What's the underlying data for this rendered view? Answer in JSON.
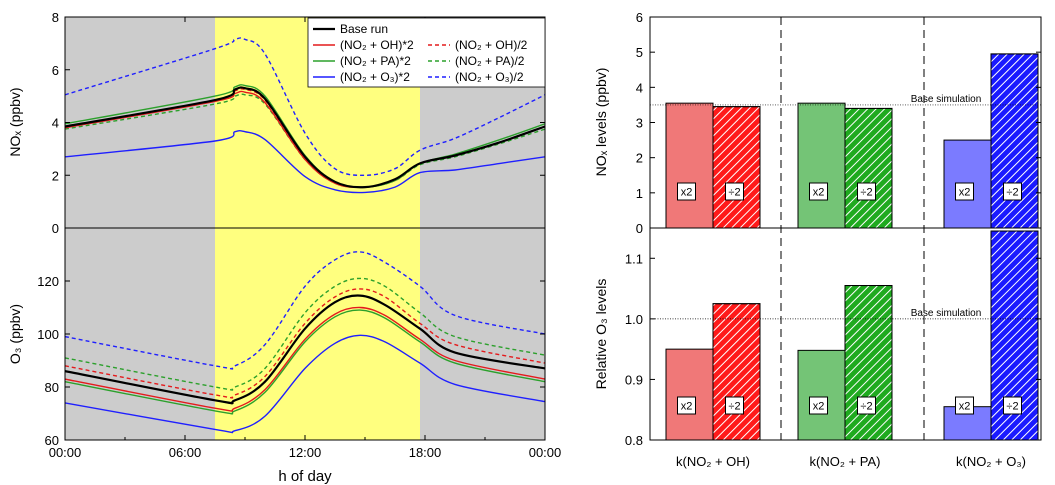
{
  "chart_data": [
    {
      "type": "line",
      "panel": "left-top",
      "ylabel": "NOₓ (ppbv)",
      "ylim": [
        0,
        8
      ],
      "yticks": [
        0,
        2,
        4,
        6,
        8
      ],
      "xlim": [
        0,
        24
      ],
      "daytime_shading": {
        "start": 7.5,
        "end": 17.75,
        "color": "#ffff7f",
        "night_color": "#cccccc"
      },
      "series": [
        {
          "name": "Base run",
          "color": "#000000",
          "style": "solid",
          "x": [
            0,
            7.5,
            8.5,
            9,
            10,
            12,
            13.5,
            15,
            16.5,
            17.75,
            19.5,
            21.75,
            24
          ],
          "y": [
            3.85,
            4.85,
            5.25,
            5.3,
            4.9,
            2.7,
            1.75,
            1.55,
            1.85,
            2.45,
            2.75,
            3.25,
            3.85
          ]
        },
        {
          "name": "(NO₂ + OH)*2",
          "color": "#e41a1c",
          "style": "solid",
          "x": [
            0,
            7.5,
            8.5,
            9,
            10,
            12,
            13.5,
            15,
            16.5,
            17.75,
            19.5,
            21.75,
            24
          ],
          "y": [
            3.8,
            4.8,
            5.1,
            5.15,
            4.75,
            2.6,
            1.7,
            1.55,
            1.8,
            2.45,
            2.75,
            3.25,
            3.85
          ]
        },
        {
          "name": "(NO₂ + PA)*2",
          "color": "#2ca02c",
          "style": "solid",
          "x": [
            0,
            7.5,
            8.5,
            9,
            10,
            12,
            13.5,
            15,
            16.5,
            17.75,
            19.5,
            21.75,
            24
          ],
          "y": [
            3.95,
            5.0,
            5.35,
            5.4,
            5.0,
            2.75,
            1.75,
            1.55,
            1.8,
            2.45,
            2.8,
            3.35,
            3.95
          ]
        },
        {
          "name": "(NO₂ + O₃)*2",
          "color": "#1f1fff",
          "style": "solid",
          "x": [
            0,
            7.5,
            8.5,
            9,
            10,
            12,
            13.5,
            15,
            16.5,
            17.75,
            19.5,
            21.75,
            24
          ],
          "y": [
            2.7,
            3.3,
            3.65,
            3.65,
            3.35,
            1.95,
            1.45,
            1.35,
            1.55,
            2.1,
            2.2,
            2.45,
            2.7
          ]
        },
        {
          "name": "(NO₂ + OH)/2",
          "color": "#e41a1c",
          "style": "dashed",
          "x": [
            0,
            7.5,
            8.5,
            9,
            10,
            12,
            13.5,
            15,
            16.5,
            17.75,
            19.5,
            21.75,
            24
          ],
          "y": [
            3.85,
            4.85,
            5.2,
            5.25,
            4.85,
            2.65,
            1.75,
            1.55,
            1.85,
            2.45,
            2.75,
            3.25,
            3.85
          ]
        },
        {
          "name": "(NO₂ + PA)/2",
          "color": "#2ca02c",
          "style": "dashed",
          "x": [
            0,
            7.5,
            8.5,
            9,
            10,
            12,
            13.5,
            15,
            16.5,
            17.75,
            19.5,
            21.75,
            24
          ],
          "y": [
            3.75,
            4.7,
            5.0,
            5.05,
            4.7,
            2.6,
            1.7,
            1.55,
            1.8,
            2.4,
            2.7,
            3.2,
            3.75
          ]
        },
        {
          "name": "(NO₂ + O₃)/2",
          "color": "#1f1fff",
          "style": "dashed",
          "x": [
            0,
            7.5,
            8.5,
            9,
            10,
            12,
            13.5,
            15,
            16.5,
            17.75,
            19.5,
            21.75,
            24
          ],
          "y": [
            5.05,
            6.8,
            7.15,
            7.15,
            6.6,
            3.6,
            2.25,
            2.0,
            2.25,
            2.95,
            3.4,
            4.2,
            5.05
          ]
        }
      ]
    },
    {
      "type": "line",
      "panel": "left-bottom",
      "ylabel": "O₃ (ppbv)",
      "xlabel": "h of day",
      "ylim": [
        60,
        140
      ],
      "yticks": [
        60,
        80,
        100,
        120
      ],
      "xlim": [
        0,
        24
      ],
      "xticks": [
        0,
        6,
        12,
        18,
        24
      ],
      "xticklabels": [
        "00:00",
        "06:00",
        "12:00",
        "18:00",
        "00:00"
      ],
      "daytime_shading": {
        "start": 7.5,
        "end": 17.75,
        "color": "#ffff7f",
        "night_color": "#cccccc"
      },
      "series": [
        {
          "name": "Base run",
          "color": "#000000",
          "style": "solid",
          "x": [
            0,
            7.5,
            8.5,
            10,
            12,
            13.5,
            14.75,
            16,
            17.75,
            19.5,
            24
          ],
          "y": [
            86,
            75,
            75,
            82,
            102,
            112,
            114.5,
            111,
            102,
            93,
            87
          ]
        },
        {
          "name": "(NO₂ + OH)*2",
          "color": "#e41a1c",
          "style": "solid",
          "x": [
            0,
            7.5,
            8.5,
            10,
            12,
            13.5,
            14.75,
            16,
            17.75,
            19.5,
            24
          ],
          "y": [
            83,
            72,
            72,
            79,
            98,
            107.5,
            110,
            107,
            98,
            90,
            83
          ]
        },
        {
          "name": "(NO₂ + PA)*2",
          "color": "#2ca02c",
          "style": "solid",
          "x": [
            0,
            7.5,
            8.5,
            10,
            12,
            13.5,
            14.75,
            16,
            17.75,
            19.5,
            24
          ],
          "y": [
            82,
            71,
            71,
            78,
            97,
            106.5,
            109,
            106,
            97,
            89,
            82
          ]
        },
        {
          "name": "(NO₂ + O₃)*2",
          "color": "#1f1fff",
          "style": "solid",
          "x": [
            0,
            7.5,
            8.5,
            10,
            12,
            13.5,
            14.75,
            16,
            17.75,
            19.5,
            24
          ],
          "y": [
            74,
            64,
            63.5,
            69,
            87,
            96.5,
            99.5,
            97,
            89,
            81,
            74.5
          ]
        },
        {
          "name": "(NO₂ + OH)/2",
          "color": "#e41a1c",
          "style": "dashed",
          "x": [
            0,
            7.5,
            8.5,
            10,
            12,
            13.5,
            14.75,
            16,
            17.75,
            19.5,
            24
          ],
          "y": [
            88,
            77,
            77,
            84,
            104,
            114,
            117,
            114,
            104,
            96,
            89
          ]
        },
        {
          "name": "(NO₂ + PA)/2",
          "color": "#2ca02c",
          "style": "dashed",
          "x": [
            0,
            7.5,
            8.5,
            10,
            12,
            13.5,
            14.75,
            16,
            17.75,
            19.5,
            24
          ],
          "y": [
            91,
            80,
            80,
            87,
            108,
            118,
            121,
            118,
            108,
            99,
            92
          ]
        },
        {
          "name": "(NO₂ + O₃)/2",
          "color": "#1f1fff",
          "style": "dashed",
          "x": [
            0,
            7.5,
            8.5,
            10,
            12,
            13.5,
            14.75,
            16,
            17.75,
            19.5,
            24
          ],
          "y": [
            99,
            88,
            88,
            96,
            118,
            128,
            131,
            127,
            118,
            107,
            100
          ]
        }
      ]
    },
    {
      "type": "bar",
      "panel": "right-top",
      "ylabel": "NOₓ levels (ppbv)",
      "ylim": [
        0,
        6
      ],
      "yticks": [
        0,
        1,
        2,
        3,
        4,
        5,
        6
      ],
      "reference": {
        "value": 3.5,
        "label": "Base simulation"
      },
      "groups": [
        {
          "bars": [
            {
              "value": 3.55,
              "label": "x2",
              "color": "#f07878",
              "hatched": false
            },
            {
              "value": 3.45,
              "label": "÷2",
              "color": "#ff1a1a",
              "hatched": true
            }
          ]
        },
        {
          "bars": [
            {
              "value": 3.55,
              "label": "x2",
              "color": "#74c476",
              "hatched": false
            },
            {
              "value": 3.4,
              "label": "÷2",
              "color": "#1faa1f",
              "hatched": true
            }
          ]
        },
        {
          "bars": [
            {
              "value": 2.5,
              "label": "x2",
              "color": "#7b7bff",
              "hatched": false
            },
            {
              "value": 4.95,
              "label": "÷2",
              "color": "#1a1aff",
              "hatched": true
            }
          ]
        }
      ]
    },
    {
      "type": "bar",
      "panel": "right-bottom",
      "ylabel": "Relative O₃ levels",
      "ylim": [
        0.8,
        1.15
      ],
      "yticks": [
        0.8,
        0.9,
        1.0,
        1.1
      ],
      "yticklabels": [
        "0.8",
        "0.9",
        "1.0",
        "1.1"
      ],
      "reference": {
        "value": 1.0,
        "label": "Base simulation"
      },
      "categories": [
        "k(NO₂ + OH)",
        "k(NO₂ + PA)",
        "k(NO₂ + O₃)"
      ],
      "groups": [
        {
          "bars": [
            {
              "value": 0.95,
              "label": "x2",
              "color": "#f07878",
              "hatched": false
            },
            {
              "value": 1.025,
              "label": "÷2",
              "color": "#ff1a1a",
              "hatched": true
            }
          ]
        },
        {
          "bars": [
            {
              "value": 0.948,
              "label": "x2",
              "color": "#74c476",
              "hatched": false
            },
            {
              "value": 1.055,
              "label": "÷2",
              "color": "#1faa1f",
              "hatched": true
            }
          ]
        },
        {
          "bars": [
            {
              "value": 0.855,
              "label": "x2",
              "color": "#7b7bff",
              "hatched": false
            },
            {
              "value": 1.145,
              "label": "÷2",
              "color": "#1a1aff",
              "hatched": true
            }
          ]
        }
      ]
    }
  ]
}
